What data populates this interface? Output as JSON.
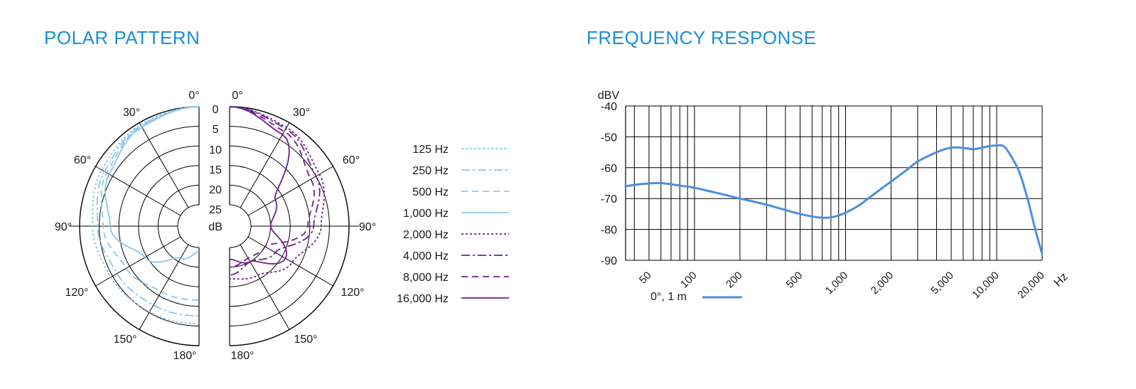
{
  "colors": {
    "title": "#1a8fd6",
    "low_freq": "#8cc4ec",
    "high_freq": "#6b1f8f",
    "response": "#4a90d9",
    "grid": "#000000"
  },
  "polar": {
    "title": "POLAR PATTERN",
    "angle_labels": {
      "a0": "0°",
      "a30": "30°",
      "a60": "60°",
      "a90": "90°",
      "a120": "120°",
      "a150": "150°",
      "a180": "180°"
    },
    "db_labels": [
      "0",
      "5",
      "10",
      "15",
      "20",
      "25"
    ],
    "db_unit": "dB",
    "legend": [
      {
        "label": "125 Hz",
        "color": "#8cc4ec",
        "dash": "dotted"
      },
      {
        "label": "250 Hz",
        "color": "#8cc4ec",
        "dash": "dashdot"
      },
      {
        "label": "500 Hz",
        "color": "#8cc4ec",
        "dash": "dashed"
      },
      {
        "label": "1,000 Hz",
        "color": "#8cc4ec",
        "dash": "solid"
      },
      {
        "label": "2,000 Hz",
        "color": "#6b1f8f",
        "dash": "dotted"
      },
      {
        "label": "4,000 Hz",
        "color": "#6b1f8f",
        "dash": "dashdot"
      },
      {
        "label": "8,000 Hz",
        "color": "#6b1f8f",
        "dash": "dashed"
      },
      {
        "label": "16,000 Hz",
        "color": "#6b1f8f",
        "dash": "solid"
      }
    ]
  },
  "frequency": {
    "title": "FREQUENCY RESPONSE",
    "y_unit": "dBV",
    "x_unit": "Hz",
    "legend_label": "0°, 1 m",
    "x_tick_labels": [
      "50",
      "100",
      "200",
      "500",
      "1,000",
      "2,000",
      "5,000",
      "10,000",
      "20,000"
    ]
  },
  "chart_data": [
    {
      "type": "line",
      "polar": true,
      "title": "POLAR PATTERN",
      "angle_ticks_deg": [
        0,
        30,
        60,
        90,
        120,
        150,
        180
      ],
      "radial_ticks_db": [
        0,
        5,
        10,
        15,
        20,
        25
      ],
      "radial_range_db": [
        0,
        25
      ],
      "left_half_series": [
        "125 Hz",
        "250 Hz",
        "500 Hz",
        "1,000 Hz"
      ],
      "right_half_series": [
        "2,000 Hz",
        "4,000 Hz",
        "8,000 Hz",
        "16,000 Hz"
      ],
      "angles_deg": [
        0,
        30,
        60,
        90,
        120,
        150,
        180
      ],
      "series": [
        {
          "name": "125 Hz",
          "values_db": [
            0,
            0.6,
            1.8,
            3.3,
            4.5,
            5.2,
            5.6
          ]
        },
        {
          "name": "250 Hz",
          "values_db": [
            0,
            0.9,
            2.6,
            4.6,
            6.3,
            7.2,
            7.6
          ]
        },
        {
          "name": "500 Hz",
          "values_db": [
            0,
            1.1,
            3.3,
            6.0,
            9.0,
            11.2,
            11.6
          ]
        },
        {
          "name": "1,000 Hz",
          "values_db": [
            0,
            1.3,
            4.0,
            7.8,
            14.5,
            21.0,
            24.0
          ]
        },
        {
          "name": "2,000 Hz",
          "values_db": [
            0,
            1.4,
            4.0,
            7.1,
            12.0,
            16.0,
            17.0
          ]
        },
        {
          "name": "4,000 Hz",
          "values_db": [
            0,
            1.8,
            5.0,
            9.0,
            17.0,
            20.0,
            18.0
          ]
        },
        {
          "name": "8,000 Hz",
          "values_db": [
            0,
            2.6,
            6.5,
            10.5,
            20.0,
            21.0,
            20.0
          ]
        },
        {
          "name": "16,000 Hz",
          "values_db": [
            0,
            3.5,
            17.0,
            20.0,
            14.0,
            20.0,
            22.0
          ]
        }
      ]
    },
    {
      "type": "line",
      "title": "FREQUENCY RESPONSE",
      "xlabel": "Hz",
      "ylabel": "dBV",
      "xscale": "log",
      "xlim": [
        35,
        20000
      ],
      "ylim": [
        -90,
        -40
      ],
      "yticks": [
        -40,
        -50,
        -60,
        -70,
        -80,
        -90
      ],
      "xticks": [
        50,
        100,
        200,
        500,
        1000,
        2000,
        5000,
        10000,
        20000
      ],
      "grid": true,
      "series": [
        {
          "name": "0°, 1 m",
          "x": [
            35,
            45,
            60,
            80,
            100,
            150,
            200,
            300,
            500,
            700,
            900,
            1200,
            1500,
            2000,
            2500,
            3000,
            4000,
            5000,
            6000,
            7000,
            8000,
            9000,
            10000,
            11000,
            12000,
            14000,
            16000,
            18000,
            20000
          ],
          "y": [
            -66,
            -65.3,
            -65,
            -65.8,
            -66.5,
            -68.5,
            -70,
            -72,
            -75,
            -76.2,
            -75.5,
            -72.5,
            -69,
            -64.5,
            -61,
            -58,
            -55,
            -53.5,
            -53.6,
            -54,
            -53.5,
            -53,
            -52.8,
            -52.9,
            -55,
            -61,
            -70,
            -80,
            -88
          ]
        }
      ]
    }
  ]
}
